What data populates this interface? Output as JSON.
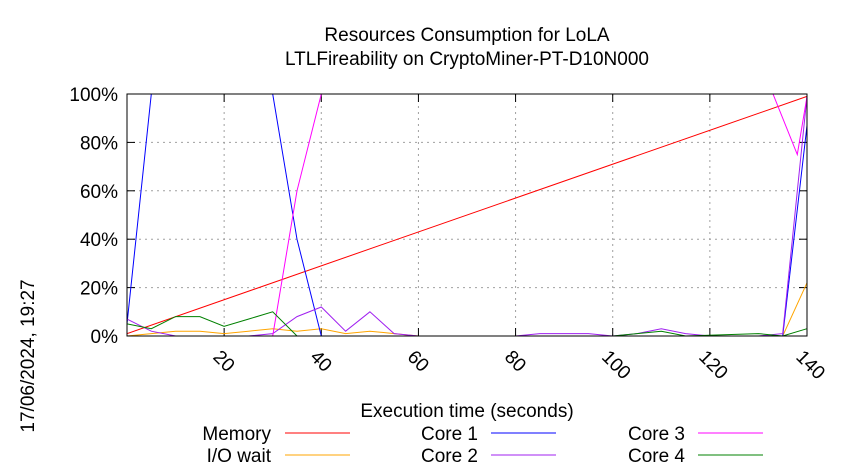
{
  "chart_data": {
    "type": "line",
    "title": "Resources Consumption for LoLA",
    "subtitle": "LTLFireability on CryptoMiner-PT-D10N000",
    "xlabel": "Execution time (seconds)",
    "ylabel": "",
    "side_label": "17/06/2024, 19:27",
    "xlim": [
      0,
      140
    ],
    "ylim": [
      0,
      100
    ],
    "x_ticks": [
      20,
      40,
      60,
      80,
      100,
      120,
      140
    ],
    "y_ticks": [
      0,
      20,
      40,
      60,
      80,
      100
    ],
    "y_tick_labels": [
      "0%",
      "20%",
      "40%",
      "60%",
      "80%",
      "100%"
    ],
    "grid": true,
    "legend_position": "bottom",
    "series": [
      {
        "name": "Memory",
        "color": "#ff0000",
        "points": [
          [
            0,
            1
          ],
          [
            140,
            99
          ]
        ]
      },
      {
        "name": "I/O wait",
        "color": "#ffa500",
        "points": [
          [
            0,
            0
          ],
          [
            5,
            1
          ],
          [
            10,
            2
          ],
          [
            15,
            2
          ],
          [
            20,
            1
          ],
          [
            25,
            2
          ],
          [
            30,
            3
          ],
          [
            35,
            2
          ],
          [
            40,
            3
          ],
          [
            45,
            1
          ],
          [
            50,
            2
          ],
          [
            55,
            1
          ],
          [
            60,
            0
          ],
          [
            135,
            0
          ],
          [
            140,
            22
          ]
        ]
      },
      {
        "name": "Core 1",
        "color": "#0000ff",
        "points": [
          [
            0,
            5
          ],
          [
            5,
            100
          ],
          [
            30,
            100
          ],
          [
            35,
            40
          ],
          [
            40,
            0
          ],
          [
            135,
            0
          ],
          [
            140,
            87
          ]
        ]
      },
      {
        "name": "Core 2",
        "color": "#a020f0",
        "points": [
          [
            0,
            7
          ],
          [
            5,
            2
          ],
          [
            10,
            0
          ],
          [
            25,
            0
          ],
          [
            30,
            1
          ],
          [
            35,
            8
          ],
          [
            40,
            12
          ],
          [
            45,
            2
          ],
          [
            50,
            10
          ],
          [
            55,
            1
          ],
          [
            60,
            0
          ],
          [
            80,
            0
          ],
          [
            85,
            1
          ],
          [
            95,
            1
          ],
          [
            100,
            0
          ],
          [
            105,
            1
          ],
          [
            110,
            3
          ],
          [
            115,
            1
          ],
          [
            120,
            0
          ],
          [
            130,
            0
          ],
          [
            135,
            1
          ],
          [
            140,
            99
          ]
        ]
      },
      {
        "name": "Core 3",
        "color": "#ff00ff",
        "points": [
          [
            0,
            0
          ],
          [
            30,
            0
          ],
          [
            35,
            60
          ],
          [
            40,
            100
          ],
          [
            133,
            100
          ],
          [
            138,
            75
          ],
          [
            140,
            99
          ]
        ]
      },
      {
        "name": "Core 4",
        "color": "#008000",
        "points": [
          [
            0,
            5
          ],
          [
            5,
            3
          ],
          [
            10,
            8
          ],
          [
            15,
            8
          ],
          [
            20,
            4
          ],
          [
            25,
            7
          ],
          [
            30,
            10
          ],
          [
            35,
            0
          ],
          [
            100,
            0
          ],
          [
            105,
            1
          ],
          [
            110,
            2
          ],
          [
            115,
            0
          ],
          [
            130,
            1
          ],
          [
            135,
            0
          ],
          [
            140,
            3
          ]
        ]
      }
    ]
  }
}
